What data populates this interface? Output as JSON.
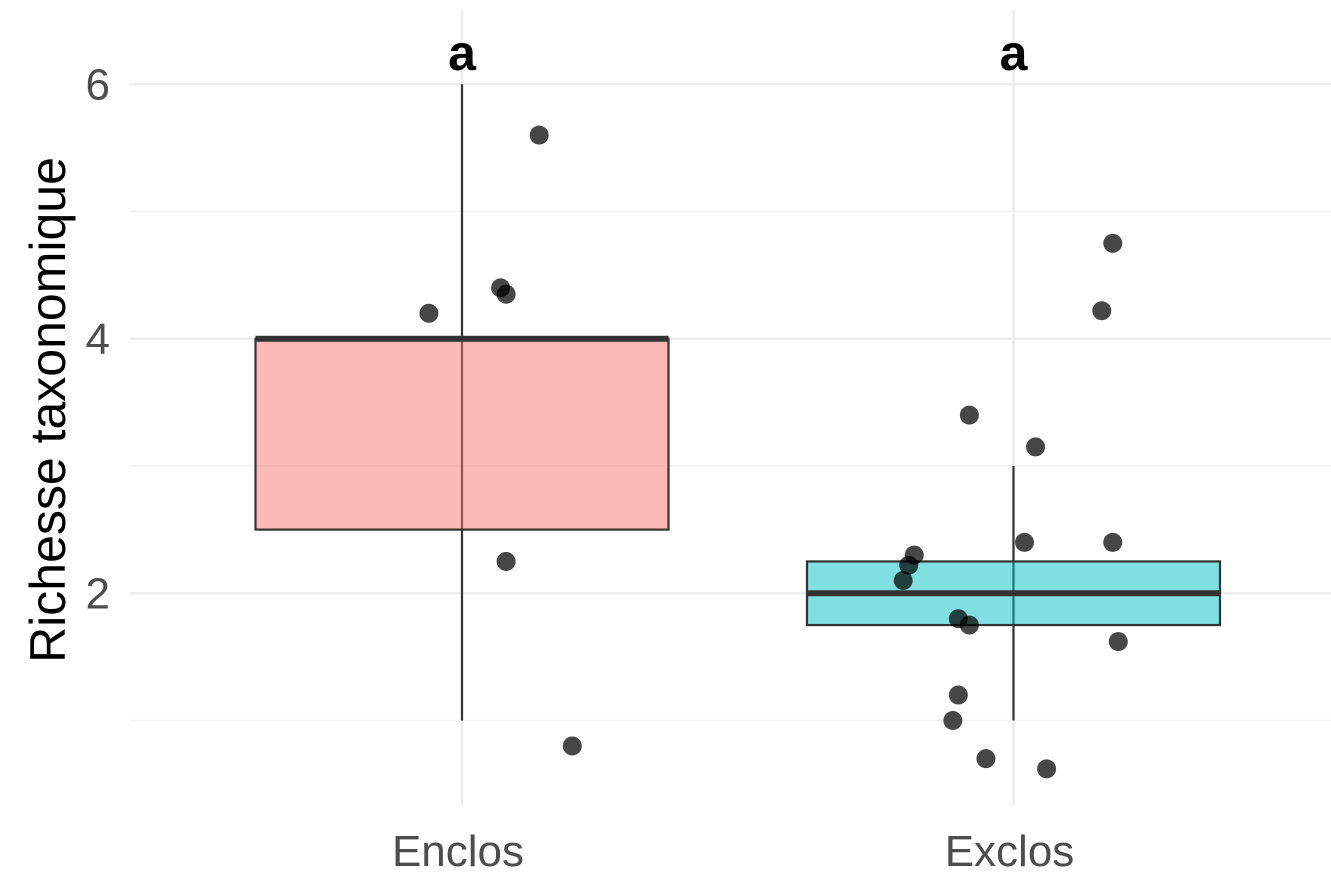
{
  "chart_data": {
    "type": "box",
    "ylabel": "Richesse taxonomique",
    "xlabel": "",
    "ylim": [
      0.4,
      6.6
    ],
    "yticks": [
      2,
      4,
      6
    ],
    "grid": true,
    "categories": [
      "Enclos",
      "Exclos"
    ],
    "colors": {
      "Enclos": "#f8766d",
      "Exclos": "#00bfc4"
    },
    "boxes": [
      {
        "category": "Enclos",
        "q1": 2.5,
        "median": 4,
        "q3": 4,
        "whisker_low": 1,
        "whisker_high": 6,
        "letter": "a"
      },
      {
        "category": "Exclos",
        "q1": 1.75,
        "median": 2,
        "q3": 2.25,
        "whisker_low": 1,
        "whisker_high": 3,
        "letter": "a"
      }
    ],
    "points": {
      "Enclos": [
        {
          "x_offset": 0.14,
          "y": 5.6
        },
        {
          "x_offset": -0.06,
          "y": 4.2
        },
        {
          "x_offset": 0.07,
          "y": 4.4
        },
        {
          "x_offset": 0.08,
          "y": 4.35
        },
        {
          "x_offset": 0.08,
          "y": 2.25
        },
        {
          "x_offset": 0.2,
          "y": 0.8
        }
      ],
      "Exclos": [
        {
          "x_offset": 0.18,
          "y": 4.75
        },
        {
          "x_offset": 0.16,
          "y": 4.22
        },
        {
          "x_offset": -0.08,
          "y": 3.4
        },
        {
          "x_offset": 0.04,
          "y": 3.15
        },
        {
          "x_offset": 0.02,
          "y": 2.4
        },
        {
          "x_offset": 0.18,
          "y": 2.4
        },
        {
          "x_offset": -0.18,
          "y": 2.3
        },
        {
          "x_offset": -0.19,
          "y": 2.22
        },
        {
          "x_offset": -0.2,
          "y": 2.1
        },
        {
          "x_offset": -0.1,
          "y": 1.8
        },
        {
          "x_offset": -0.08,
          "y": 1.75
        },
        {
          "x_offset": 0.19,
          "y": 1.62
        },
        {
          "x_offset": -0.1,
          "y": 1.2
        },
        {
          "x_offset": -0.11,
          "y": 1.0
        },
        {
          "x_offset": -0.05,
          "y": 0.7
        },
        {
          "x_offset": 0.06,
          "y": 0.62
        }
      ]
    }
  }
}
